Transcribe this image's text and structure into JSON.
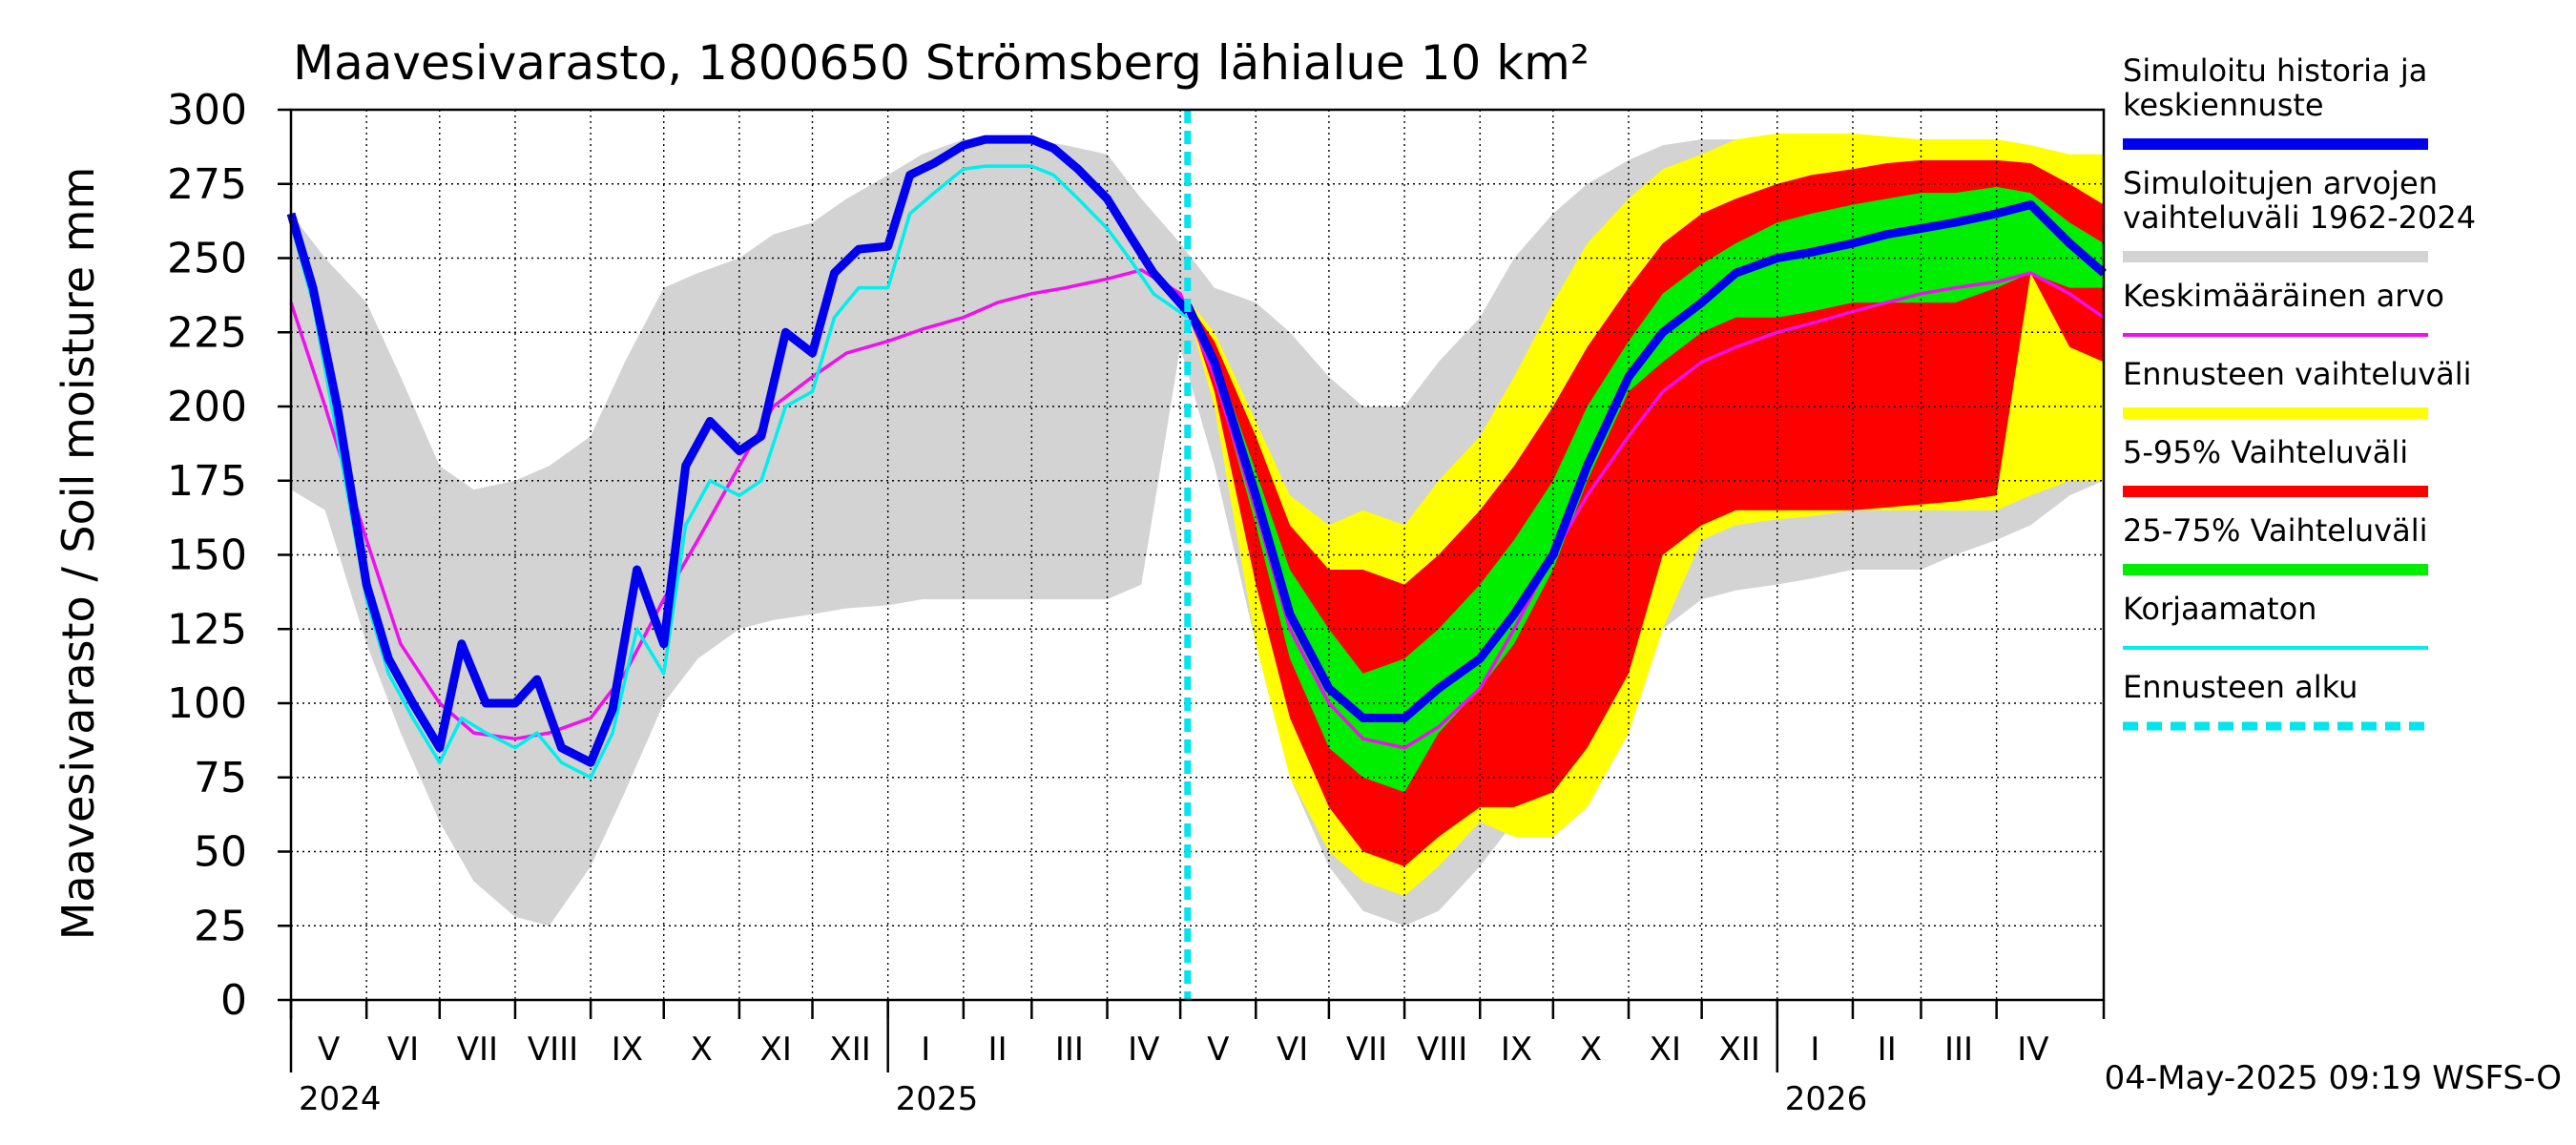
{
  "chart_data": {
    "type": "area",
    "title": "Maavesivarasto, 1800650 Strömsberg lähialue 10 km²",
    "ylabel": "Maavesivarasto / Soil moisture   mm",
    "ylim": [
      0,
      300
    ],
    "yticks": [
      0,
      25,
      50,
      75,
      100,
      125,
      150,
      175,
      200,
      225,
      250,
      275,
      300
    ],
    "x_start": "2024-05-01",
    "x_end": "2026-05-15",
    "forecast_start": "2025-05-04",
    "months": [
      {
        "start": "2024-05-01",
        "end": "2024-06-01",
        "label": "V"
      },
      {
        "start": "2024-06-01",
        "end": "2024-07-01",
        "label": "VI"
      },
      {
        "start": "2024-07-01",
        "end": "2024-08-01",
        "label": "VII"
      },
      {
        "start": "2024-08-01",
        "end": "2024-09-01",
        "label": "VIII"
      },
      {
        "start": "2024-09-01",
        "end": "2024-10-01",
        "label": "IX"
      },
      {
        "start": "2024-10-01",
        "end": "2024-11-01",
        "label": "X"
      },
      {
        "start": "2024-11-01",
        "end": "2024-12-01",
        "label": "XI"
      },
      {
        "start": "2024-12-01",
        "end": "2025-01-01",
        "label": "XII"
      },
      {
        "start": "2025-01-01",
        "end": "2025-02-01",
        "label": "I"
      },
      {
        "start": "2025-02-01",
        "end": "2025-03-01",
        "label": "II"
      },
      {
        "start": "2025-03-01",
        "end": "2025-04-01",
        "label": "III"
      },
      {
        "start": "2025-04-01",
        "end": "2025-05-01",
        "label": "IV"
      },
      {
        "start": "2025-05-01",
        "end": "2025-06-01",
        "label": "V"
      },
      {
        "start": "2025-06-01",
        "end": "2025-07-01",
        "label": "VI"
      },
      {
        "start": "2025-07-01",
        "end": "2025-08-01",
        "label": "VII"
      },
      {
        "start": "2025-08-01",
        "end": "2025-09-01",
        "label": "VIII"
      },
      {
        "start": "2025-09-01",
        "end": "2025-10-01",
        "label": "IX"
      },
      {
        "start": "2025-10-01",
        "end": "2025-11-01",
        "label": "X"
      },
      {
        "start": "2025-11-01",
        "end": "2025-12-01",
        "label": "XI"
      },
      {
        "start": "2025-12-01",
        "end": "2026-01-01",
        "label": "XII"
      },
      {
        "start": "2026-01-01",
        "end": "2026-02-01",
        "label": "I"
      },
      {
        "start": "2026-02-01",
        "end": "2026-03-01",
        "label": "II"
      },
      {
        "start": "2026-03-01",
        "end": "2026-04-01",
        "label": "III"
      },
      {
        "start": "2026-04-01",
        "end": "2026-05-01",
        "label": "IV"
      }
    ],
    "years": [
      {
        "date": "2024-05-01",
        "label": "2024"
      },
      {
        "date": "2025-01-01",
        "label": "2025"
      },
      {
        "date": "2026-01-01",
        "label": "2026"
      }
    ],
    "footer": "04-May-2025 09:19 WSFS-O",
    "legend": [
      {
        "key": "hist",
        "label": "Simuloitu historia ja keskiennuste",
        "color": "#0000ee",
        "style": "thick"
      },
      {
        "key": "range",
        "label": "Simuloitujen arvojen vaihteluväli 1962-2024",
        "color": "#d3d3d3",
        "style": "thick"
      },
      {
        "key": "mean",
        "label": "Keskimääräinen arvo",
        "color": "#ee10ee",
        "style": "thin"
      },
      {
        "key": "fc_range",
        "label": "Ennusteen vaihteluväli",
        "color": "#ffff00",
        "style": "thick"
      },
      {
        "key": "p5_95",
        "label": "5-95% Vaihteluväli",
        "color": "#ff0000",
        "style": "thick"
      },
      {
        "key": "p25_75",
        "label": "25-75% Vaihteluväli",
        "color": "#00ee00",
        "style": "thick"
      },
      {
        "key": "raw",
        "label": "Korjaamaton",
        "color": "#00eeee",
        "style": "thin"
      },
      {
        "key": "start",
        "label": "Ennusteen alku",
        "color": "#00e5ee",
        "style": "dashed"
      }
    ],
    "hist_range": {
      "t": [
        "2024-05-01",
        "2024-05-15",
        "2024-06-01",
        "2024-06-15",
        "2024-07-01",
        "2024-07-15",
        "2024-08-01",
        "2024-08-15",
        "2024-09-01",
        "2024-09-15",
        "2024-10-01",
        "2024-10-15",
        "2024-11-01",
        "2024-11-15",
        "2024-12-01",
        "2024-12-15",
        "2025-01-01",
        "2025-01-15",
        "2025-02-01",
        "2025-02-15",
        "2025-03-01",
        "2025-03-15",
        "2025-04-01",
        "2025-04-15",
        "2025-05-01",
        "2025-05-15",
        "2025-06-01",
        "2025-06-15",
        "2025-07-01",
        "2025-07-15",
        "2025-08-01",
        "2025-08-15",
        "2025-09-01",
        "2025-09-15",
        "2025-10-01",
        "2025-10-15",
        "2025-11-01",
        "2025-11-15",
        "2025-12-01",
        "2025-12-15",
        "2026-01-01",
        "2026-01-15",
        "2026-02-01",
        "2026-02-15",
        "2026-03-01",
        "2026-03-15",
        "2026-04-01",
        "2026-04-15",
        "2026-05-01",
        "2026-05-15"
      ],
      "lo": [
        172,
        165,
        120,
        90,
        60,
        40,
        28,
        25,
        45,
        70,
        100,
        115,
        125,
        128,
        130,
        132,
        133,
        135,
        135,
        135,
        135,
        135,
        135,
        140,
        220,
        180,
        120,
        75,
        45,
        30,
        25,
        30,
        45,
        60,
        75,
        90,
        110,
        125,
        135,
        138,
        140,
        142,
        145,
        145,
        145,
        150,
        155,
        160,
        170,
        175
      ],
      "hi": [
        265,
        250,
        235,
        210,
        180,
        172,
        175,
        180,
        190,
        215,
        240,
        245,
        250,
        258,
        262,
        270,
        278,
        285,
        290,
        290,
        290,
        288,
        285,
        270,
        255,
        240,
        235,
        225,
        210,
        200,
        200,
        215,
        230,
        250,
        265,
        275,
        283,
        288,
        290,
        290,
        290,
        290,
        290,
        290,
        290,
        290,
        290,
        288,
        285,
        285
      ]
    },
    "forecast": {
      "t": [
        "2025-05-04",
        "2025-05-15",
        "2025-06-01",
        "2025-06-15",
        "2025-07-01",
        "2025-07-15",
        "2025-08-01",
        "2025-08-15",
        "2025-09-01",
        "2025-09-15",
        "2025-10-01",
        "2025-10-15",
        "2025-11-01",
        "2025-11-15",
        "2025-12-01",
        "2025-12-15",
        "2026-01-01",
        "2026-01-15",
        "2026-02-01",
        "2026-02-15",
        "2026-03-01",
        "2026-03-15",
        "2026-04-01",
        "2026-04-15",
        "2026-05-01",
        "2026-05-15"
      ],
      "min": [
        232,
        200,
        120,
        75,
        50,
        40,
        35,
        45,
        60,
        55,
        55,
        65,
        90,
        125,
        155,
        160,
        162,
        163,
        165,
        165,
        165,
        165,
        165,
        170,
        175,
        175
      ],
      "p5": [
        233,
        205,
        140,
        95,
        65,
        50,
        45,
        55,
        65,
        65,
        70,
        85,
        110,
        150,
        160,
        165,
        165,
        165,
        165,
        166,
        167,
        168,
        170,
        245,
        220,
        215
      ],
      "p25": [
        234,
        210,
        160,
        115,
        85,
        75,
        70,
        90,
        105,
        120,
        145,
        175,
        205,
        215,
        225,
        230,
        230,
        232,
        235,
        235,
        235,
        235,
        240,
        245,
        240,
        240
      ],
      "median": [
        234,
        215,
        170,
        130,
        105,
        95,
        95,
        105,
        115,
        130,
        150,
        180,
        210,
        225,
        235,
        245,
        250,
        252,
        255,
        258,
        260,
        262,
        265,
        268,
        255,
        245
      ],
      "p75": [
        234,
        218,
        178,
        145,
        125,
        110,
        115,
        125,
        140,
        155,
        175,
        200,
        222,
        238,
        248,
        255,
        262,
        265,
        268,
        270,
        272,
        272,
        274,
        272,
        262,
        255
      ],
      "p95": [
        235,
        222,
        190,
        160,
        145,
        145,
        140,
        150,
        165,
        180,
        200,
        220,
        240,
        255,
        265,
        270,
        275,
        278,
        280,
        282,
        283,
        283,
        283,
        282,
        275,
        268
      ],
      "max": [
        236,
        225,
        195,
        170,
        160,
        165,
        160,
        175,
        190,
        210,
        235,
        255,
        270,
        280,
        285,
        290,
        292,
        292,
        292,
        291,
        290,
        290,
        290,
        288,
        285,
        285
      ]
    },
    "history": {
      "t": [
        "2024-05-01",
        "2024-05-10",
        "2024-05-20",
        "2024-06-01",
        "2024-06-10",
        "2024-06-20",
        "2024-07-01",
        "2024-07-10",
        "2024-07-20",
        "2024-08-01",
        "2024-08-10",
        "2024-08-20",
        "2024-09-01",
        "2024-09-10",
        "2024-09-20",
        "2024-10-01",
        "2024-10-10",
        "2024-10-20",
        "2024-11-01",
        "2024-11-10",
        "2024-11-20",
        "2024-12-01",
        "2024-12-10",
        "2024-12-20",
        "2025-01-01",
        "2025-01-10",
        "2025-01-20",
        "2025-02-01",
        "2025-02-10",
        "2025-02-20",
        "2025-03-01",
        "2025-03-10",
        "2025-03-20",
        "2025-04-01",
        "2025-04-10",
        "2025-04-20",
        "2025-05-04"
      ],
      "values": [
        265,
        240,
        200,
        140,
        115,
        100,
        85,
        120,
        100,
        100,
        108,
        85,
        80,
        98,
        145,
        120,
        180,
        195,
        185,
        190,
        225,
        218,
        245,
        253,
        254,
        278,
        282,
        288,
        290,
        290,
        290,
        287,
        280,
        270,
        258,
        245,
        232
      ]
    },
    "raw": {
      "t": [
        "2024-05-01",
        "2024-05-10",
        "2024-05-20",
        "2024-06-01",
        "2024-06-10",
        "2024-06-20",
        "2024-07-01",
        "2024-07-10",
        "2024-07-20",
        "2024-08-01",
        "2024-08-10",
        "2024-08-20",
        "2024-09-01",
        "2024-09-10",
        "2024-09-20",
        "2024-10-01",
        "2024-10-10",
        "2024-10-20",
        "2024-11-01",
        "2024-11-10",
        "2024-11-20",
        "2024-12-01",
        "2024-12-10",
        "2024-12-20",
        "2025-01-01",
        "2025-01-10",
        "2025-01-20",
        "2025-02-01",
        "2025-02-10",
        "2025-02-20",
        "2025-03-01",
        "2025-03-10",
        "2025-03-20",
        "2025-04-01",
        "2025-04-10",
        "2025-04-20",
        "2025-05-04"
      ],
      "values": [
        262,
        235,
        190,
        135,
        110,
        95,
        80,
        95,
        90,
        85,
        90,
        80,
        75,
        90,
        125,
        110,
        160,
        175,
        170,
        175,
        200,
        205,
        230,
        240,
        240,
        265,
        272,
        280,
        281,
        281,
        281,
        278,
        270,
        260,
        250,
        238,
        230
      ]
    },
    "mean": {
      "t": [
        "2024-05-01",
        "2024-05-15",
        "2024-06-01",
        "2024-06-15",
        "2024-07-01",
        "2024-07-15",
        "2024-08-01",
        "2024-08-15",
        "2024-09-01",
        "2024-09-15",
        "2024-10-01",
        "2024-10-15",
        "2024-11-01",
        "2024-11-15",
        "2024-12-01",
        "2024-12-15",
        "2025-01-01",
        "2025-01-15",
        "2025-02-01",
        "2025-02-15",
        "2025-03-01",
        "2025-03-15",
        "2025-04-01",
        "2025-04-15",
        "2025-05-01",
        "2025-05-15",
        "2025-06-01",
        "2025-06-15",
        "2025-07-01",
        "2025-07-15",
        "2025-08-01",
        "2025-08-15",
        "2025-09-01",
        "2025-09-15",
        "2025-10-01",
        "2025-10-15",
        "2025-11-01",
        "2025-11-15",
        "2025-12-01",
        "2025-12-15",
        "2026-01-01",
        "2026-01-15",
        "2026-02-01",
        "2026-02-15",
        "2026-03-01",
        "2026-03-15",
        "2026-04-01",
        "2026-04-15",
        "2026-05-01",
        "2026-05-15"
      ],
      "values": [
        235,
        200,
        155,
        120,
        100,
        90,
        88,
        90,
        95,
        110,
        135,
        155,
        180,
        200,
        210,
        218,
        222,
        226,
        230,
        235,
        238,
        240,
        243,
        246,
        238,
        210,
        165,
        125,
        100,
        88,
        85,
        92,
        105,
        125,
        150,
        170,
        190,
        205,
        215,
        220,
        225,
        228,
        232,
        235,
        238,
        240,
        242,
        245,
        238,
        230
      ]
    }
  }
}
